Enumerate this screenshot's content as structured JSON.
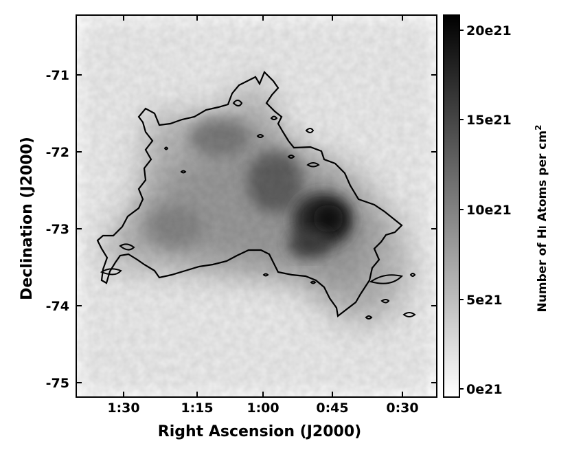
{
  "chart_data": {
    "type": "heatmap",
    "title": "",
    "xlabel": "Right Ascension (J2000)",
    "ylabel": "Declination (J2000)",
    "x_ticks": [
      "1:30",
      "1:15",
      "1:00",
      "0:45",
      "0:30"
    ],
    "y_ticks": [
      "-71",
      "-72",
      "-73",
      "-74",
      "-75"
    ],
    "colorbar": {
      "label_prefix": "Number of H",
      "label_roman": "I",
      "label_mid": " Atoms per cm",
      "label_sup": "2",
      "ticks": [
        "20e21",
        "15e21",
        "10e21",
        "5e21",
        "0e21"
      ],
      "range": [
        0,
        20
      ],
      "units": "e21 atoms per cm2",
      "colormap": "gray_r"
    },
    "contour_color": "#000000",
    "grid": false,
    "features": [
      {
        "ra_h": 0.78,
        "dec": -72.95,
        "value": 17
      },
      {
        "ra_h": 0.93,
        "dec": -72.35,
        "value": 12
      },
      {
        "ra_h": 1.18,
        "dec": -71.8,
        "value": 9
      },
      {
        "ra_h": 1.28,
        "dec": -72.9,
        "value": 8
      },
      {
        "ra_h": 0.88,
        "dec": -73.4,
        "value": 7
      }
    ]
  }
}
